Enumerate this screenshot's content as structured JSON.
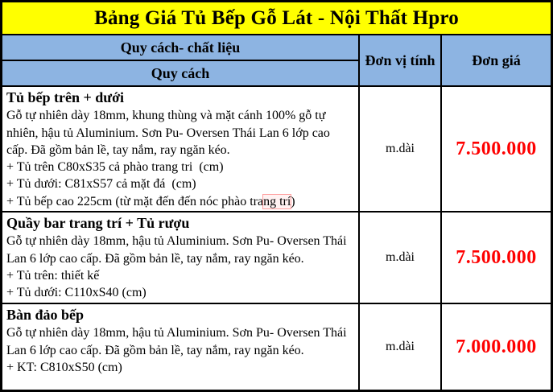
{
  "title": "Bảng Giá Tủ Bếp Gỗ Lát - Nội Thất Hpro",
  "header": {
    "spec_material": "Quy cách- chất liệu",
    "spec": "Quy cách",
    "unit": "Đơn vị tính",
    "price": "Đơn giá"
  },
  "rows": [
    {
      "name": "Tủ bếp trên + dưới",
      "desc": "Gỗ tự nhiên dày 18mm, khung thùng và mặt cánh 100% gỗ tự nhiên, hậu tủ Aluminium. Sơn Pu- Oversen Thái Lan 6 lớp cao cấp. Đã gồm bản lề, tay nắm, ray ngăn kéo.",
      "details": [
        "+ Tủ trên C80xS35 cả phào trang tri  (cm)",
        "+ Tủ dưới: C81xS57 cả mặt đá  (cm)"
      ],
      "detail_spellcheck": {
        "pre": "+ Tủ bếp cao 225cm (từ mặt đến đến nóc phào tra",
        "flagged": "ng trí",
        "post": ")"
      },
      "unit": "m.dài",
      "price": "7.500.000"
    },
    {
      "name": "Quầy bar trang trí + Tủ rượu",
      "desc": "Gỗ tự nhiên dày 18mm, hậu tủ Aluminium. Sơn Pu- Oversen Thái Lan 6 lớp cao cấp. Đã gồm bản lề, tay nắm, ray ngăn kéo.",
      "details": [
        "+ Tủ trên: thiết kế",
        "+ Tủ dưới: C110xS40 (cm)"
      ],
      "unit": "m.dài",
      "price": "7.500.000"
    },
    {
      "name": "Bàn đảo bếp",
      "desc": "Gỗ tự nhiên dày 18mm, hậu tủ Aluminium. Sơn Pu- Oversen Thái Lan 6 lớp cao cấp. Đã gồm bản lề, tay nắm, ray ngăn kéo.",
      "details": [
        "+ KT: C810xS50 (cm)"
      ],
      "unit": "m.dài",
      "price": "7.000.000"
    }
  ],
  "colors": {
    "banner_yellow": "#FFFF00",
    "header_blue": "#8DB4E2",
    "price_red": "#FE0000",
    "border_black": "#000000"
  }
}
